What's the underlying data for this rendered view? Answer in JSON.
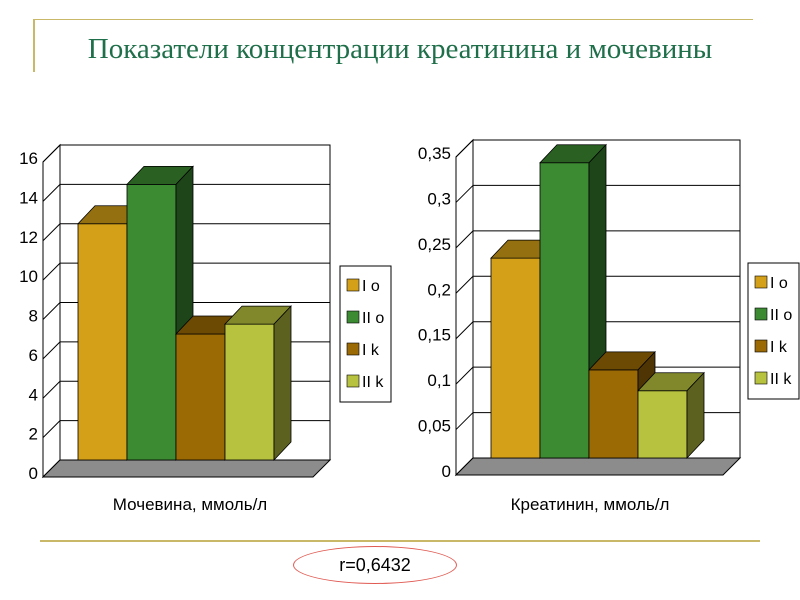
{
  "title": "Показатели концентрации креатинина и мочевины",
  "correlation": "r=0,6432",
  "colors": {
    "I o": "#d4a017",
    "II o": "#3c8a32",
    "I k": "#9c6a05",
    "II k": "#b7c23e",
    "floor": "#8c8c8c"
  },
  "chart_data": [
    {
      "type": "bar",
      "title": "",
      "xlabel": "Мочевина, ммоль/л",
      "ylabel": "",
      "ylim": [
        0,
        16
      ],
      "yticks": [
        "0",
        "2",
        "4",
        "6",
        "8",
        "10",
        "12",
        "14",
        "16"
      ],
      "grid": true,
      "legend": "right",
      "series": [
        {
          "name": "I o",
          "values": [
            12
          ]
        },
        {
          "name": "II o",
          "values": [
            14
          ]
        },
        {
          "name": "I k",
          "values": [
            6.4
          ]
        },
        {
          "name": "II k",
          "values": [
            6.9
          ]
        }
      ]
    },
    {
      "type": "bar",
      "title": "",
      "xlabel": "Креатинин, ммоль/л",
      "ylabel": "",
      "ylim": [
        0,
        0.35
      ],
      "yticks": [
        "0",
        "0,05",
        "0,1",
        "0,15",
        "0,2",
        "0,25",
        "0,3",
        "0,35"
      ],
      "grid": true,
      "legend": "right",
      "series": [
        {
          "name": "I o",
          "values": [
            0.22
          ]
        },
        {
          "name": "II o",
          "values": [
            0.325
          ]
        },
        {
          "name": "I k",
          "values": [
            0.097
          ]
        },
        {
          "name": "II k",
          "values": [
            0.074
          ]
        }
      ]
    }
  ]
}
